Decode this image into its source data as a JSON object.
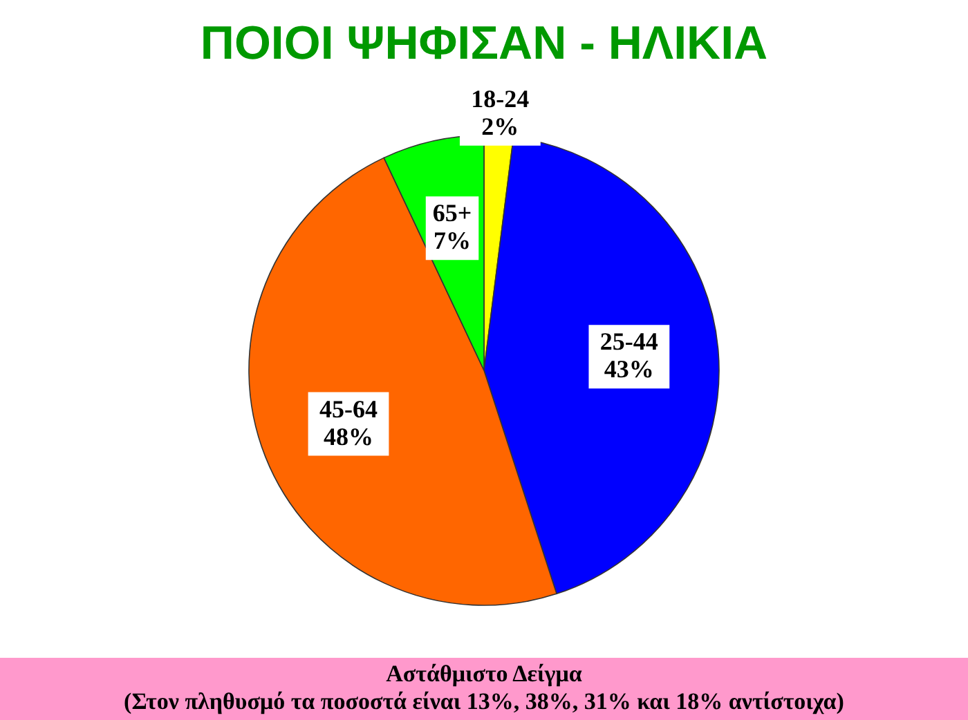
{
  "chart_data": {
    "type": "pie",
    "title": "ΠΟΙΟΙ ΨΗΦΙΣΑΝ - ΗΛΙΚΙΑ",
    "categories": [
      "18-24",
      "25-44",
      "45-64",
      "65+"
    ],
    "values": [
      2,
      43,
      48,
      7
    ],
    "value_labels": [
      "2%",
      "43%",
      "48%",
      "7%"
    ],
    "colors": [
      "#ffff00",
      "#0000ff",
      "#ff6600",
      "#00ff00"
    ],
    "annotations": [
      "Αστάθμιστο Δείγμα",
      "(Στον πληθυσμό τα ποσοστά είναι 13%, 38%, 31% και 18% αντίστοιχα)"
    ]
  }
}
